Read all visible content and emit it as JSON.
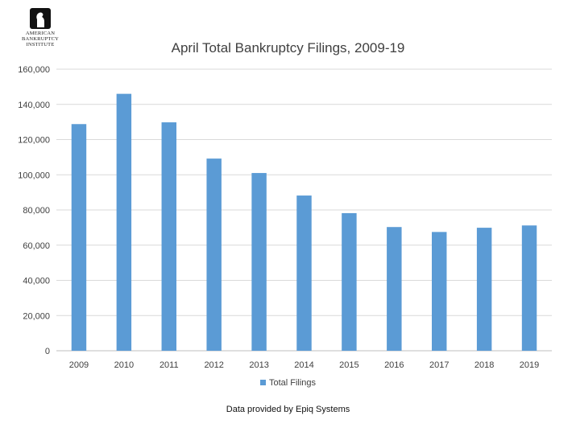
{
  "logo": {
    "lines": [
      "AMERICAN",
      "BANKRUPTCY",
      "INSTITUTE"
    ]
  },
  "chart_data": {
    "type": "bar",
    "title": "April Total Bankruptcy Filings, 2009-19",
    "categories": [
      "2009",
      "2010",
      "2011",
      "2012",
      "2013",
      "2014",
      "2015",
      "2016",
      "2017",
      "2018",
      "2019"
    ],
    "series": [
      {
        "name": "Total Filings",
        "values": [
          128800,
          146000,
          129800,
          109200,
          101000,
          88200,
          78200,
          70300,
          67500,
          69900,
          71200
        ],
        "color": "#5b9bd5"
      }
    ],
    "ylim": [
      0,
      160000
    ],
    "yticks": [
      "0",
      "20,000",
      "40,000",
      "60,000",
      "80,000",
      "100,000",
      "120,000",
      "140,000",
      "160,000"
    ],
    "ytick_values": [
      0,
      20000,
      40000,
      60000,
      80000,
      100000,
      120000,
      140000,
      160000
    ],
    "grid": true,
    "legend_position": "bottom"
  },
  "footer": "Data provided by Epiq Systems"
}
